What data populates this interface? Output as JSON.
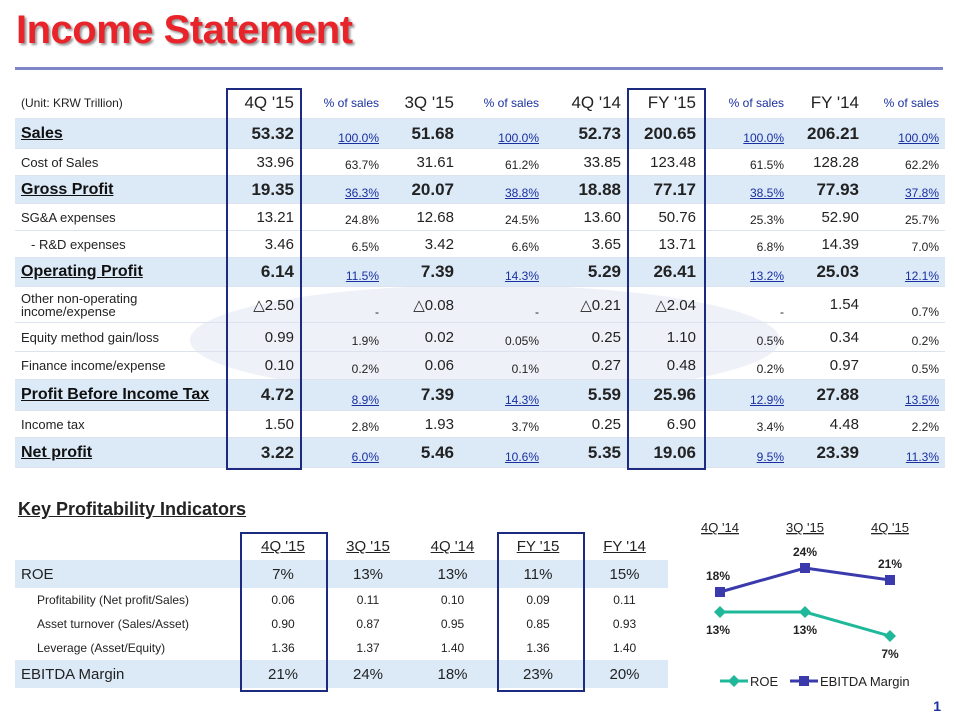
{
  "title": "Income Statement",
  "page_number": "1",
  "income_statement": {
    "header": [
      "(Unit: KRW Trillion)",
      "4Q '15",
      "% of sales",
      "3Q '15",
      "% of sales",
      "4Q '14",
      "FY '15",
      "% of sales",
      "FY '14",
      "% of sales"
    ],
    "rows": [
      [
        "Sales",
        "53.32",
        "100.0%",
        "51.68",
        "100.0%",
        "52.73",
        "200.65",
        "100.0%",
        "206.21",
        "100.0%"
      ],
      [
        "Cost of Sales",
        "33.96",
        "63.7%",
        "31.61",
        "61.2%",
        "33.85",
        "123.48",
        "61.5%",
        "128.28",
        "62.2%"
      ],
      [
        "Gross Profit",
        "19.35",
        "36.3%",
        "20.07",
        "38.8%",
        "18.88",
        "77.17",
        "38.5%",
        "77.93",
        "37.8%"
      ],
      [
        "SG&A expenses",
        "13.21",
        "24.8%",
        "12.68",
        "24.5%",
        "13.60",
        "50.76",
        "25.3%",
        "52.90",
        "25.7%"
      ],
      [
        "- R&D expenses",
        "3.46",
        "6.5%",
        "3.42",
        "6.6%",
        "3.65",
        "13.71",
        "6.8%",
        "14.39",
        "7.0%"
      ],
      [
        "Operating Profit",
        "6.14",
        "11.5%",
        "7.39",
        "14.3%",
        "5.29",
        "26.41",
        "13.2%",
        "25.03",
        "12.1%"
      ],
      [
        "Other non-operating income/expense",
        "△2.50",
        "-",
        "△0.08",
        "-",
        "△0.21",
        "△2.04",
        "-",
        "1.54",
        "0.7%"
      ],
      [
        "Equity method gain/loss",
        "0.99",
        "1.9%",
        "0.02",
        "0.05%",
        "0.25",
        "1.10",
        "0.5%",
        "0.34",
        "0.2%"
      ],
      [
        "Finance income/expense",
        "0.10",
        "0.2%",
        "0.06",
        "0.1%",
        "0.27",
        "0.48",
        "0.2%",
        "0.97",
        "0.5%"
      ],
      [
        "Profit Before Income Tax",
        "4.72",
        "8.9%",
        "7.39",
        "14.3%",
        "5.59",
        "25.96",
        "12.9%",
        "27.88",
        "13.5%"
      ],
      [
        "Income tax",
        "1.50",
        "2.8%",
        "1.93",
        "3.7%",
        "0.25",
        "6.90",
        "3.4%",
        "4.48",
        "2.2%"
      ],
      [
        "Net profit",
        "3.22",
        "6.0%",
        "5.46",
        "10.6%",
        "5.35",
        "19.06",
        "9.5%",
        "23.39",
        "11.3%"
      ]
    ]
  },
  "kpi": {
    "title": "Key Profitability Indicators",
    "header": [
      "4Q '15",
      "3Q '15",
      "4Q '14",
      "FY '15",
      "FY '14"
    ],
    "rows": [
      [
        "ROE",
        "7%",
        "13%",
        "13%",
        "11%",
        "15%"
      ],
      [
        "Profitability (Net profit/Sales)",
        "0.06",
        "0.11",
        "0.10",
        "0.09",
        "0.11"
      ],
      [
        "Asset turnover (Sales/Asset)",
        "0.90",
        "0.87",
        "0.95",
        "0.85",
        "0.93"
      ],
      [
        "Leverage (Asset/Equity)",
        "1.36",
        "1.37",
        "1.40",
        "1.36",
        "1.40"
      ],
      [
        "EBITDA Margin",
        "21%",
        "24%",
        "18%",
        "23%",
        "20%"
      ]
    ]
  },
  "chart_data": {
    "type": "line",
    "categories": [
      "4Q '14",
      "3Q '15",
      "4Q '15"
    ],
    "series": [
      {
        "name": "ROE",
        "color": "#1fb89a",
        "values": [
          13,
          13,
          7
        ],
        "value_labels": [
          "13%",
          "13%",
          "7%"
        ]
      },
      {
        "name": "EBITDA Margin",
        "color": "#3a3aad",
        "values": [
          18,
          24,
          21
        ],
        "value_labels": [
          "18%",
          "24%",
          "21%"
        ]
      }
    ]
  }
}
